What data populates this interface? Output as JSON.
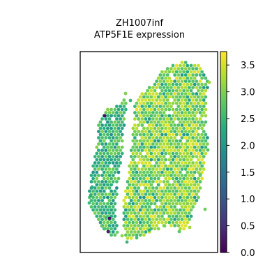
{
  "chart_data": {
    "type": "scatter",
    "title_line1": "ZH1007inf",
    "title_line2": "ATP5F1E expression",
    "xlabel": "",
    "ylabel": "",
    "colorbar": {
      "colormap": "viridis",
      "range": [
        0.0,
        3.75
      ],
      "ticks": [
        "0.0",
        "0.5",
        "1.0",
        "1.5",
        "2.0",
        "2.5",
        "3.0",
        "3.5"
      ]
    },
    "spot_value_range": [
      0.0,
      3.7
    ],
    "low_value_spots": [
      {
        "region": "left-strip-top",
        "value": 0.1
      },
      {
        "region": "left-strip-bottom",
        "value": 0.2
      },
      {
        "region": "left-strip-bottom",
        "value": 0.3
      }
    ]
  }
}
